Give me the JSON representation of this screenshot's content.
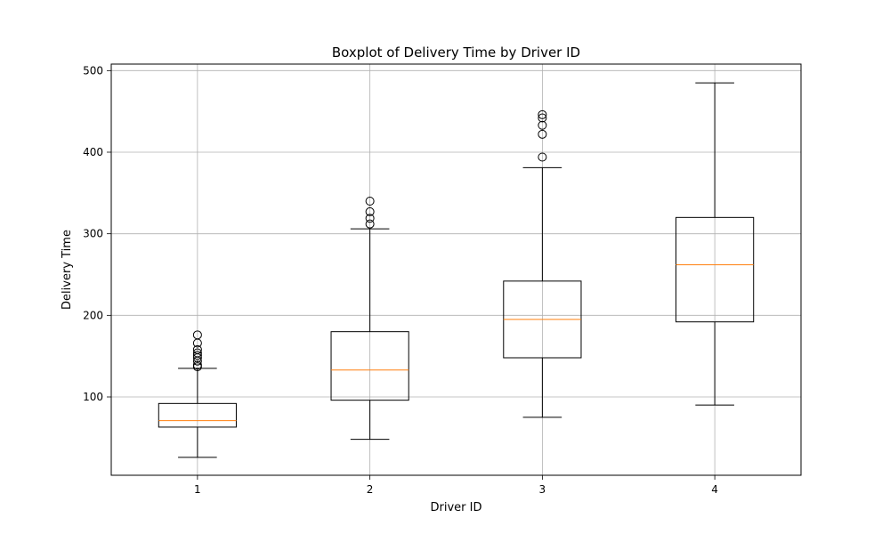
{
  "chart_data": {
    "type": "boxplot",
    "title": "Boxplot of Delivery Time by Driver ID",
    "xlabel": "Driver ID",
    "ylabel": "Delivery Time",
    "grid": true,
    "ylim": [
      4,
      508
    ],
    "yticks": [
      100,
      200,
      300,
      400,
      500
    ],
    "categories": [
      "1",
      "2",
      "3",
      "4"
    ],
    "boxes": [
      {
        "category": "1",
        "whisker_low": 26,
        "q1": 63,
        "median": 71,
        "q3": 92,
        "whisker_high": 135,
        "outliers": [
          137,
          139,
          144,
          148,
          151,
          154,
          158,
          166,
          176
        ]
      },
      {
        "category": "2",
        "whisker_low": 48,
        "q1": 96,
        "median": 133,
        "q3": 180,
        "whisker_high": 306,
        "outliers": [
          312,
          319,
          327,
          340
        ]
      },
      {
        "category": "3",
        "whisker_low": 75,
        "q1": 148,
        "median": 195,
        "q3": 242,
        "whisker_high": 381,
        "outliers": [
          394,
          422,
          433,
          442,
          446
        ]
      },
      {
        "category": "4",
        "whisker_low": 90,
        "q1": 192,
        "median": 262,
        "q3": 320,
        "whisker_high": 485,
        "outliers": []
      }
    ],
    "colors": {
      "box": "#000000",
      "median": "#ff7f0e",
      "grid": "#b0b0b0"
    }
  }
}
